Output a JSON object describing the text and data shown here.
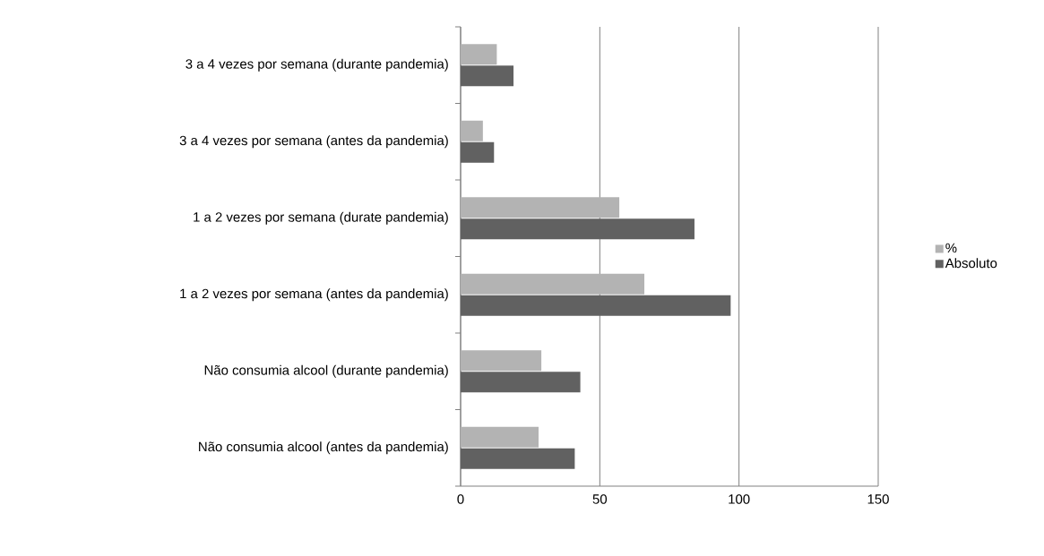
{
  "chart_data": {
    "type": "bar",
    "orientation": "horizontal",
    "categories": [
      "3 a 4 vezes por semana (durante pandemia)",
      "3 a 4 vezes por semana (antes da pandemia)",
      "1 a 2 vezes por semana (durate pandemia)",
      "1 a 2 vezes por semana (antes da pandemia)",
      "Não consumia alcool (durante pandemia)",
      "Não consumia alcool (antes da pandemia)"
    ],
    "series": [
      {
        "name": "%",
        "color": "#b3b3b3",
        "values": [
          13,
          8,
          57,
          66,
          29,
          28
        ]
      },
      {
        "name": "Absoluto",
        "color": "#616161",
        "values": [
          19,
          12,
          84,
          97,
          43,
          41
        ]
      }
    ],
    "xlim": [
      0,
      150
    ],
    "xticks": [
      0,
      50,
      100,
      150
    ],
    "grid": "x",
    "legend": "right"
  }
}
